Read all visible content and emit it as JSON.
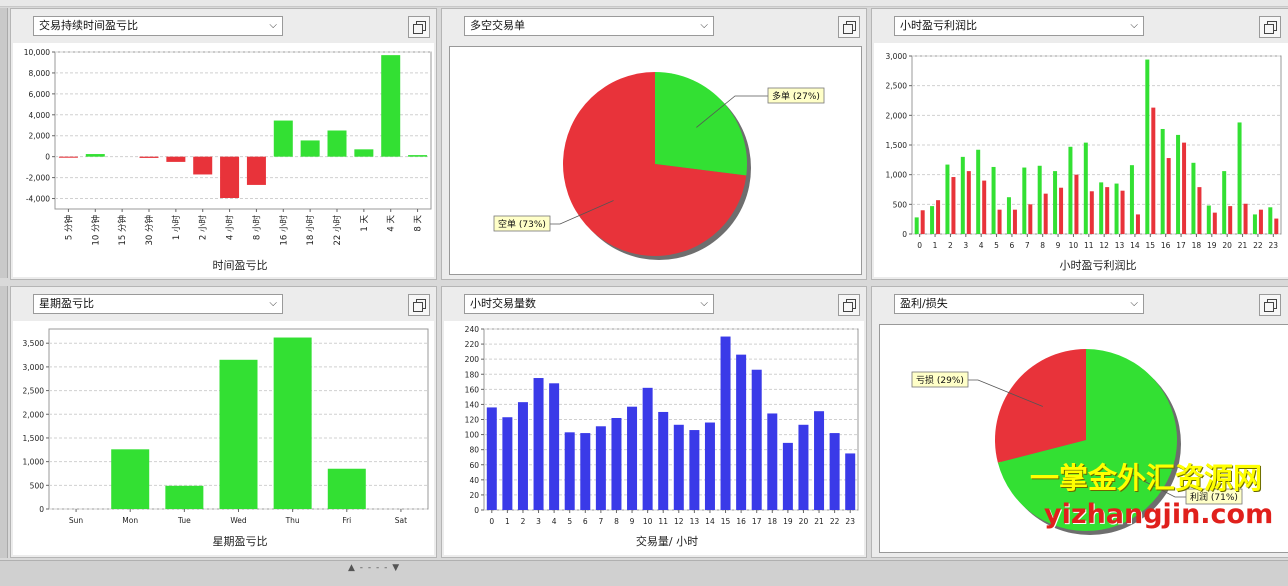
{
  "panels": [
    {
      "select_label": "交易持续时间盈亏比",
      "chart_data": {
        "type": "bar",
        "xlabel": "时间盈亏比",
        "categories": [
          "5 分钟",
          "10 分钟",
          "15 分钟",
          "30 分钟",
          "1 小时",
          "2 小时",
          "4 小时",
          "8 小时",
          "16 小时",
          "18 小时",
          "22 小时",
          "1 天",
          "4 天",
          "8 天"
        ],
        "values": [
          -100,
          250,
          0,
          -120,
          -500,
          -1700,
          -3950,
          -2700,
          3450,
          1550,
          2500,
          700,
          9700,
          150
        ],
        "ylim": [
          -5000,
          10000
        ],
        "yticks": [
          -4000,
          -2000,
          0,
          2000,
          4000,
          6000,
          8000,
          10000
        ],
        "ytick_labels": [
          "-4,000",
          "-2,000",
          "0",
          "2,000",
          "4,000",
          "6,000",
          "8,000",
          "10,000"
        ],
        "positive_color": "#33e033",
        "negative_color": "#e8333a"
      }
    },
    {
      "select_label": "多空交易单",
      "chart_data": {
        "type": "pie",
        "slices": [
          {
            "label": "多单 (27%)",
            "value": 27,
            "color": "#33e033"
          },
          {
            "label": "空单 (73%)",
            "value": 73,
            "color": "#e8333a"
          }
        ]
      }
    },
    {
      "select_label": "小时盈亏利润比",
      "chart_data": {
        "type": "bar",
        "xlabel": "小时盈亏利润比",
        "categories": [
          "0",
          "1",
          "2",
          "3",
          "4",
          "5",
          "6",
          "7",
          "8",
          "9",
          "10",
          "11",
          "12",
          "13",
          "14",
          "15",
          "16",
          "17",
          "18",
          "19",
          "20",
          "21",
          "22",
          "23"
        ],
        "series": [
          {
            "color": "#33e033",
            "values": [
              280,
              470,
              1170,
              1300,
              1420,
              1130,
              620,
              1120,
              1150,
              1060,
              1470,
              1540,
              870,
              850,
              1160,
              2940,
              1770,
              1670,
              1200,
              480,
              1060,
              1880,
              330,
              450
            ]
          },
          {
            "color": "#e8333a",
            "values": [
              400,
              570,
              960,
              1060,
              900,
              410,
              410,
              500,
              680,
              780,
              1000,
              720,
              790,
              730,
              330,
              2130,
              1280,
              1540,
              790,
              360,
              470,
              510,
              410,
              260
            ]
          }
        ],
        "ylim": [
          0,
          3000
        ],
        "yticks": [
          0,
          500,
          1000,
          1500,
          2000,
          2500,
          3000
        ],
        "ytick_labels": [
          "0",
          "500",
          "1,000",
          "1,500",
          "2,000",
          "2,500",
          "3,000"
        ]
      }
    },
    {
      "select_label": "星期盈亏比",
      "chart_data": {
        "type": "bar",
        "xlabel": "星期盈亏比",
        "categories": [
          "Sun",
          "Mon",
          "Tue",
          "Wed",
          "Thu",
          "Fri",
          "Sat"
        ],
        "values": [
          0,
          1260,
          490,
          3150,
          3620,
          850,
          0
        ],
        "ylim": [
          0,
          3800
        ],
        "yticks": [
          0,
          500,
          1000,
          1500,
          2000,
          2500,
          3000,
          3500
        ],
        "ytick_labels": [
          "0",
          "500",
          "1,000",
          "1,500",
          "2,000",
          "2,500",
          "3,000",
          "3,500"
        ],
        "positive_color": "#33e033"
      }
    },
    {
      "select_label": "小时交易量数",
      "chart_data": {
        "type": "bar",
        "xlabel": "交易量/ 小时",
        "categories": [
          "0",
          "1",
          "2",
          "3",
          "4",
          "5",
          "6",
          "7",
          "8",
          "9",
          "10",
          "11",
          "12",
          "13",
          "14",
          "15",
          "16",
          "17",
          "18",
          "19",
          "20",
          "21",
          "22",
          "23"
        ],
        "values": [
          136,
          123,
          143,
          175,
          168,
          103,
          102,
          111,
          122,
          137,
          162,
          130,
          113,
          106,
          116,
          230,
          206,
          186,
          128,
          89,
          113,
          131,
          102,
          75
        ],
        "ylim": [
          0,
          240
        ],
        "yticks": [
          0,
          20,
          40,
          60,
          80,
          100,
          120,
          140,
          160,
          180,
          200,
          220,
          240
        ],
        "ytick_labels": [
          "0",
          "20",
          "40",
          "60",
          "80",
          "100",
          "120",
          "140",
          "160",
          "180",
          "200",
          "220",
          "240"
        ],
        "positive_color": "#3a3ae8"
      }
    },
    {
      "select_label": "盈利/损失",
      "chart_data": {
        "type": "pie",
        "slices": [
          {
            "label": "利润 (71%)",
            "value": 71,
            "color": "#33e033"
          },
          {
            "label": "亏损 (29%)",
            "value": 29,
            "color": "#e8333a"
          }
        ]
      }
    }
  ],
  "watermark": {
    "line1": "一掌金外汇资源网",
    "line2": "yizhangjin.com"
  },
  "status_bar": {
    "grip": "▲ - - - - ▼"
  }
}
